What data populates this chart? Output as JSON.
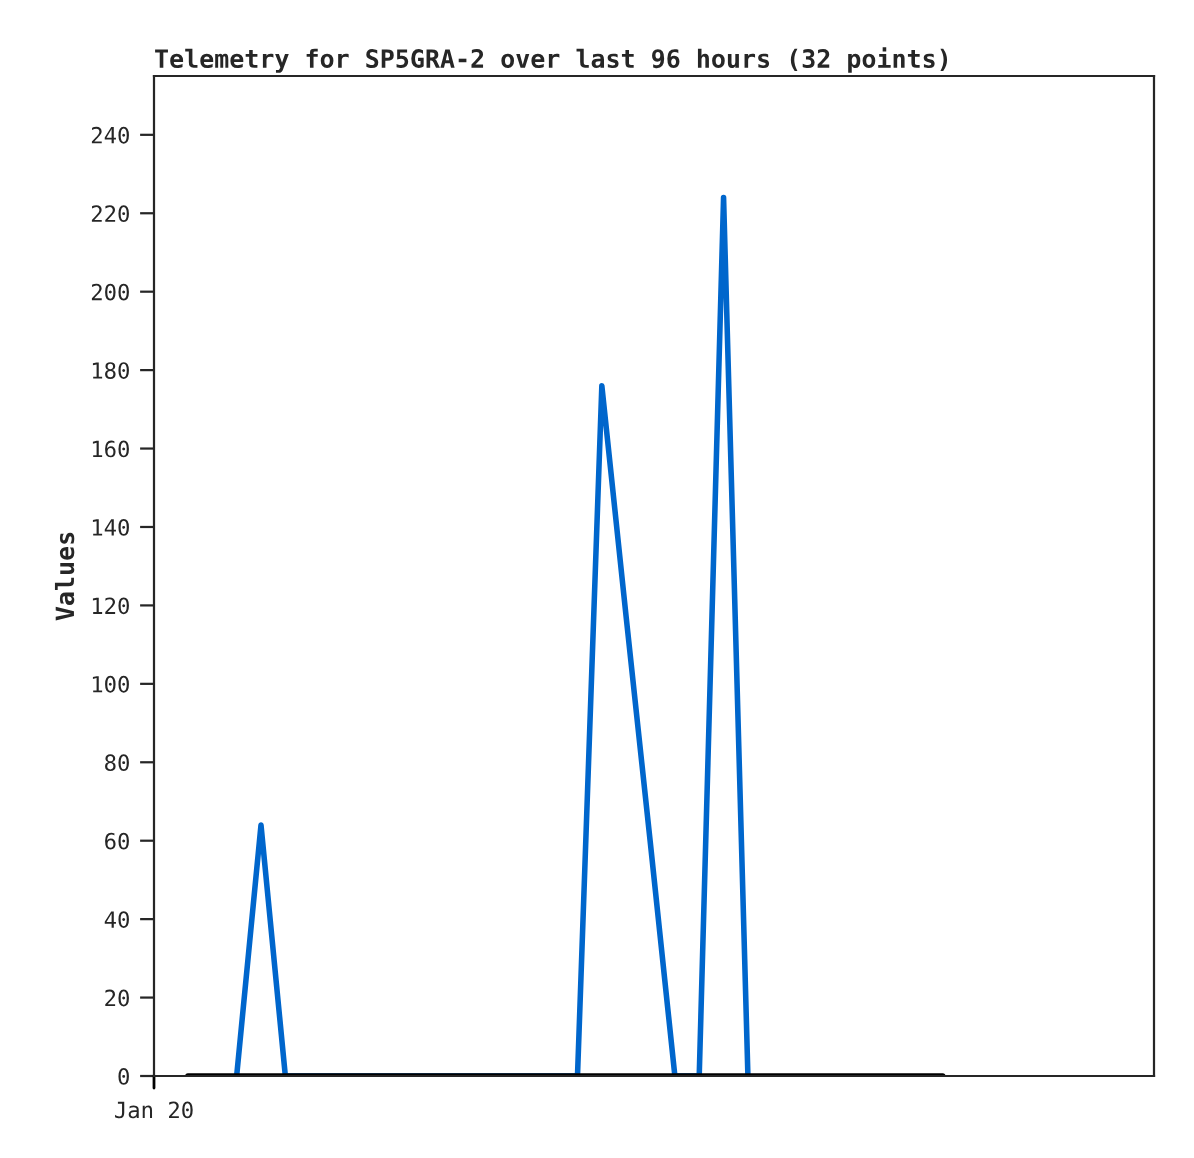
{
  "chart_data": {
    "type": "line",
    "title": "Telemetry for SP5GRA-2 over last 96 hours (32 points)",
    "ylabel": "Values",
    "categories": [
      null,
      null,
      null,
      null,
      null,
      null,
      null,
      null,
      null,
      null,
      null,
      null,
      null,
      null,
      null,
      null,
      null,
      null,
      null,
      null,
      null,
      null,
      null,
      null,
      null,
      null,
      null,
      null,
      null,
      null,
      null,
      null
    ],
    "series": [
      {
        "color": "#0066cc",
        "values": [
          null,
          null,
          0,
          64,
          0,
          null,
          null,
          null,
          null,
          null,
          null,
          null,
          null,
          null,
          null,
          null,
          0,
          176,
          117,
          59,
          0,
          0,
          224,
          0,
          null,
          null,
          null,
          null,
          null,
          null,
          null,
          null
        ]
      },
      {
        "color": "#000000",
        "values": [
          0,
          0,
          0,
          0,
          0,
          0,
          0,
          0,
          0,
          0,
          0,
          0,
          0,
          0,
          0,
          0,
          0,
          0,
          0,
          0,
          0,
          0,
          0,
          0,
          0,
          0,
          0,
          0,
          0,
          0,
          0,
          0
        ]
      }
    ],
    "annotations": [
      "Jan 20"
    ],
    "ylim": [
      0,
      255
    ],
    "yticks": [
      0,
      20,
      40,
      60,
      80,
      100,
      120,
      140,
      160,
      180,
      200,
      220,
      240
    ],
    "grid": false,
    "marker": "none",
    "line_style": "solid"
  }
}
